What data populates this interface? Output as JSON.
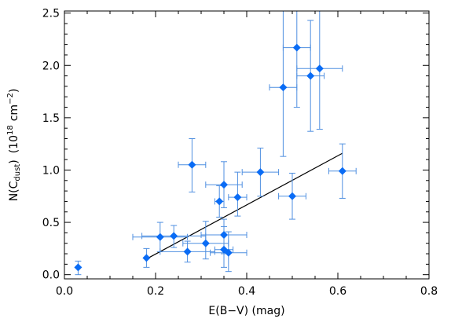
{
  "chart_data": {
    "type": "scatter",
    "title": "",
    "xlabel": "E(B−V) (mag)",
    "ylabel": {
      "main": "N(C",
      "sub": "dust",
      "close": ")",
      "unit": "(10",
      "sup1": "18",
      "unit2": "cm",
      "sup2": "−2",
      "end": ")"
    },
    "xlim": [
      0.0,
      0.8
    ],
    "ylim": [
      -0.04,
      2.52
    ],
    "xticks": [
      0.0,
      0.2,
      0.4,
      0.6,
      0.8
    ],
    "yticks": [
      0.0,
      0.5,
      1.0,
      1.5,
      2.0,
      2.5
    ],
    "xtick_labels": [
      "0.0",
      "0.2",
      "0.4",
      "0.6",
      "0.8"
    ],
    "ytick_labels": [
      "0.0",
      "0.5",
      "1.0",
      "1.5",
      "2.0",
      "2.5"
    ],
    "grid": false,
    "marker_color": "#0a6cf5",
    "errorbar_color": "#4f8fe0",
    "fit_line_color": "#000000",
    "fit_line": {
      "x": [
        0.18,
        0.61
      ],
      "y": [
        0.15,
        1.16
      ]
    },
    "points": [
      {
        "x": 0.03,
        "y": 0.07,
        "xerr": 0.0,
        "yerr_lo": 0.07,
        "yerr_hi": 0.06
      },
      {
        "x": 0.18,
        "y": 0.16,
        "xerr": 0.0,
        "yerr_lo": 0.09,
        "yerr_hi": 0.09
      },
      {
        "x": 0.21,
        "y": 0.36,
        "xerr": 0.06,
        "yerr_lo": 0.14,
        "yerr_hi": 0.14
      },
      {
        "x": 0.24,
        "y": 0.37,
        "xerr": 0.07,
        "yerr_lo": 0.11,
        "yerr_hi": 0.1
      },
      {
        "x": 0.27,
        "y": 0.22,
        "xerr": 0.06,
        "yerr_lo": 0.1,
        "yerr_hi": 0.1
      },
      {
        "x": 0.28,
        "y": 1.05,
        "xerr": 0.03,
        "yerr_lo": 0.26,
        "yerr_hi": 0.25
      },
      {
        "x": 0.31,
        "y": 0.3,
        "xerr": 0.05,
        "yerr_lo": 0.15,
        "yerr_hi": 0.21
      },
      {
        "x": 0.34,
        "y": 0.7,
        "xerr": 0.01,
        "yerr_lo": 0.15,
        "yerr_hi": 0.15
      },
      {
        "x": 0.35,
        "y": 0.86,
        "xerr": 0.04,
        "yerr_lo": 0.22,
        "yerr_hi": 0.22
      },
      {
        "x": 0.35,
        "y": 0.38,
        "xerr": 0.05,
        "yerr_lo": 0.18,
        "yerr_hi": 0.15
      },
      {
        "x": 0.35,
        "y": 0.24,
        "xerr": 0.02,
        "yerr_lo": 0.17,
        "yerr_hi": 0.22
      },
      {
        "x": 0.36,
        "y": 0.21,
        "xerr": 0.04,
        "yerr_lo": 0.18,
        "yerr_hi": 0.2
      },
      {
        "x": 0.38,
        "y": 0.74,
        "xerr": 0.02,
        "yerr_lo": 0.18,
        "yerr_hi": 0.24
      },
      {
        "x": 0.43,
        "y": 0.98,
        "xerr": 0.04,
        "yerr_lo": 0.23,
        "yerr_hi": 0.23
      },
      {
        "x": 0.48,
        "y": 1.79,
        "xerr": 0.03,
        "yerr_lo": 0.66,
        "yerr_hi": 0.9
      },
      {
        "x": 0.5,
        "y": 0.75,
        "xerr": 0.03,
        "yerr_lo": 0.22,
        "yerr_hi": 0.22
      },
      {
        "x": 0.51,
        "y": 2.17,
        "xerr": 0.03,
        "yerr_lo": 0.57,
        "yerr_hi": 0.55
      },
      {
        "x": 0.54,
        "y": 1.9,
        "xerr": 0.03,
        "yerr_lo": 0.53,
        "yerr_hi": 0.53
      },
      {
        "x": 0.56,
        "y": 1.97,
        "xerr": 0.05,
        "yerr_lo": 0.58,
        "yerr_hi": 0.58
      },
      {
        "x": 0.61,
        "y": 0.99,
        "xerr": 0.03,
        "yerr_lo": 0.26,
        "yerr_hi": 0.26
      }
    ]
  }
}
